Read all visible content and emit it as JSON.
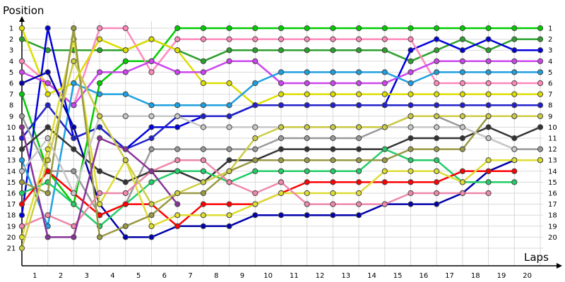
{
  "chart_data": {
    "type": "line",
    "ylabel": "Position",
    "xlabel": "Laps",
    "x_ticks": [
      "1",
      "2",
      "3",
      "4",
      "5",
      "6",
      "7",
      "8",
      "9",
      "10",
      "11",
      "12",
      "13",
      "14",
      "15",
      "16",
      "17",
      "18",
      "19",
      "20"
    ],
    "y_ticks": [
      "1",
      "2",
      "3",
      "4",
      "5",
      "6",
      "7",
      "8",
      "9",
      "10",
      "11",
      "12",
      "13",
      "14",
      "15",
      "16",
      "17",
      "18",
      "19",
      "20",
      "21"
    ],
    "right_ticks": [
      "1",
      "2",
      "3",
      "4",
      "5",
      "6",
      "7",
      "8",
      "9",
      "10",
      "11",
      "12",
      "13",
      "14",
      "15",
      "16",
      "17",
      "18",
      "19",
      "20"
    ],
    "xlim": [
      0,
      20.5
    ],
    "ylim": [
      1,
      21
    ],
    "y_inverted": true,
    "grid": true,
    "series": [
      {
        "color": "#00cc00",
        "x": [
          0,
          1,
          2,
          3,
          4,
          5,
          6,
          7,
          8,
          9,
          10,
          11,
          12,
          13,
          14,
          15,
          16,
          17,
          18,
          19,
          20
        ],
        "y": [
          7,
          14,
          17,
          6,
          4,
          4,
          1,
          1,
          1,
          1,
          1,
          1,
          1,
          1,
          1,
          1,
          1,
          1,
          1,
          1,
          1
        ]
      },
      {
        "color": "#2ca02c",
        "x": [
          0,
          1,
          2,
          3,
          4,
          5,
          6,
          7,
          8,
          9,
          10,
          11,
          12,
          13,
          14,
          15,
          16,
          17,
          18,
          19,
          20
        ],
        "y": [
          2,
          3,
          3,
          3,
          3,
          2,
          3,
          4,
          3,
          3,
          3,
          3,
          3,
          3,
          3,
          4,
          3,
          2,
          3,
          2,
          2
        ]
      },
      {
        "color": "#0000dd",
        "x": [
          0,
          1,
          2,
          3,
          4,
          5,
          6,
          7,
          8,
          9,
          10,
          11,
          12,
          13,
          14,
          15,
          16,
          17,
          18,
          19,
          20
        ],
        "y": [
          18,
          1,
          11,
          10,
          12,
          10,
          10,
          9,
          9,
          8,
          8,
          8,
          8,
          8,
          8,
          3,
          2,
          3,
          2,
          3,
          3
        ]
      },
      {
        "color": "#ff88bb",
        "x": [
          0,
          1,
          2,
          3,
          4,
          5,
          6,
          7,
          8,
          9,
          10,
          11,
          12,
          13,
          14,
          15,
          16,
          17,
          18,
          19,
          20
        ],
        "y": [
          4,
          6,
          8,
          1,
          1,
          5,
          2,
          2,
          2,
          2,
          2,
          2,
          2,
          2,
          2,
          2,
          6,
          6,
          6,
          6,
          6
        ]
      },
      {
        "color": "#dddd00",
        "x": [
          0,
          1,
          2,
          3,
          4,
          5,
          6,
          7,
          8,
          9,
          10,
          11,
          12,
          13,
          14,
          15,
          16,
          17,
          18,
          19,
          20
        ],
        "y": [
          1,
          7,
          6,
          2,
          3,
          2,
          3,
          6,
          6,
          8,
          7,
          7,
          7,
          7,
          7,
          7,
          7,
          7,
          7,
          7,
          7
        ]
      },
      {
        "color": "#cc44ee",
        "x": [
          0,
          1,
          2,
          3,
          4,
          5,
          6,
          7,
          8,
          9,
          10,
          11,
          12,
          13,
          14,
          15,
          16,
          17,
          18,
          19,
          20
        ],
        "y": [
          5,
          6,
          8,
          5,
          5,
          4,
          5,
          5,
          4,
          4,
          6,
          6,
          6,
          6,
          6,
          5,
          4,
          4,
          4,
          4,
          4
        ]
      },
      {
        "color": "#1ea0e0",
        "x": [
          0,
          1,
          2,
          3,
          4,
          5,
          6,
          7,
          8,
          9,
          10,
          11,
          12,
          13,
          14,
          15,
          16,
          17,
          18,
          19,
          20
        ],
        "y": [
          13,
          19,
          6,
          7,
          7,
          8,
          8,
          8,
          8,
          6,
          5,
          5,
          5,
          5,
          5,
          6,
          5,
          5,
          5,
          5,
          5
        ]
      },
      {
        "color": "#0000aa",
        "x": [
          0,
          1,
          2,
          3,
          4,
          5,
          6,
          7,
          8,
          9,
          10,
          11,
          12,
          13,
          14,
          15,
          16,
          17,
          18,
          19,
          20
        ],
        "y": [
          6,
          5,
          10,
          17,
          20,
          20,
          19,
          19,
          19,
          18,
          18,
          18,
          18,
          18,
          17,
          17,
          17,
          16,
          14,
          13,
          13
        ]
      },
      {
        "color": "#2020cc",
        "x": [
          0,
          1,
          2,
          3,
          4,
          5,
          6,
          7,
          8,
          9,
          10,
          11,
          12,
          13,
          14,
          15,
          16,
          17,
          18,
          19,
          20
        ],
        "y": [
          11,
          8,
          11,
          10,
          12,
          11,
          9,
          9,
          9,
          8,
          8,
          8,
          8,
          8,
          8,
          8,
          8,
          8,
          8,
          8,
          8
        ]
      },
      {
        "color": "#999999",
        "x": [
          0,
          1,
          2,
          3,
          4,
          5,
          6,
          7,
          8,
          9,
          10,
          11,
          12,
          13,
          14,
          15,
          16,
          17,
          18,
          19,
          20
        ],
        "y": [
          9,
          14,
          14,
          18,
          17,
          12,
          12,
          12,
          12,
          12,
          11,
          11,
          11,
          11,
          10,
          9,
          9,
          10,
          11,
          12,
          12
        ]
      },
      {
        "color": "#333333",
        "x": [
          0,
          1,
          2,
          3,
          4,
          5,
          6,
          7,
          8,
          9,
          10,
          11,
          12,
          13,
          14,
          15,
          16,
          17,
          18,
          19,
          20
        ],
        "y": [
          12,
          10,
          12,
          14,
          15,
          14,
          14,
          15,
          13,
          13,
          12,
          12,
          12,
          12,
          12,
          11,
          11,
          11,
          10,
          11,
          10
        ]
      },
      {
        "color": "#22cc66",
        "x": [
          0,
          1,
          2,
          3,
          4,
          5,
          6,
          7,
          8,
          9,
          10,
          11,
          12,
          13,
          14,
          15,
          16,
          17,
          18,
          19
        ],
        "y": [
          16,
          15,
          17,
          19,
          17,
          15,
          14,
          14,
          15,
          14,
          14,
          14,
          14,
          14,
          12,
          13,
          13,
          15,
          15,
          15
        ]
      },
      {
        "color": "#ff0000",
        "x": [
          0,
          1,
          2,
          3,
          4,
          5,
          6,
          7,
          8,
          9,
          10,
          11,
          12,
          13,
          14,
          15,
          16,
          17,
          18,
          19
        ],
        "y": [
          17,
          14,
          16,
          18,
          17,
          17,
          19,
          17,
          17,
          17,
          16,
          15,
          15,
          15,
          15,
          15,
          15,
          14,
          14,
          14
        ]
      },
      {
        "color": "#dddd33",
        "x": [
          0,
          1,
          2,
          3,
          4,
          5,
          6,
          7,
          8,
          9,
          10,
          11,
          12,
          13,
          14,
          15,
          16,
          17,
          18,
          19,
          20
        ],
        "y": [
          20,
          12,
          2,
          17,
          13,
          19,
          18,
          18,
          18,
          17,
          16,
          16,
          16,
          16,
          14,
          14,
          14,
          15,
          13,
          13,
          13
        ]
      },
      {
        "color": "#999944",
        "x": [
          0,
          1,
          2,
          3,
          4,
          5,
          6,
          7,
          8,
          9,
          10,
          11,
          12,
          13,
          14,
          15,
          16,
          17,
          18,
          19
        ],
        "y": [
          15,
          16,
          1,
          20,
          19,
          18,
          16,
          16,
          14,
          13,
          13,
          13,
          13,
          13,
          13,
          12,
          12,
          12,
          9,
          9
        ]
      },
      {
        "color": "#ee88aa",
        "x": [
          0,
          1,
          2,
          3,
          4,
          5,
          6,
          7,
          8,
          9,
          10,
          11,
          12,
          13,
          14,
          15,
          16,
          17,
          18
        ],
        "y": [
          19,
          18,
          19,
          16,
          16,
          14,
          13,
          13,
          15,
          16,
          15,
          17,
          17,
          17,
          17,
          16,
          16,
          16,
          16
        ]
      },
      {
        "color": "#883399",
        "x": [
          0,
          1,
          2,
          3,
          4,
          5,
          6
        ],
        "y": [
          10,
          20,
          20,
          11,
          12,
          14,
          17
        ]
      },
      {
        "color": "#c8c8c8",
        "x": [
          0,
          1,
          2,
          3,
          4,
          5,
          6,
          7,
          8,
          9,
          10,
          11,
          12,
          13,
          14,
          15,
          16,
          17,
          18,
          19
        ],
        "y": [
          14,
          11,
          16,
          9,
          9,
          9,
          9,
          10,
          10,
          10,
          10,
          10,
          10,
          10,
          10,
          10,
          10,
          10,
          11,
          12
        ]
      },
      {
        "color": "#cccc44",
        "x": [
          0,
          1,
          2,
          3,
          4,
          5,
          6,
          7,
          8,
          9,
          10,
          11,
          12,
          13,
          14,
          15,
          16,
          17,
          18,
          19,
          20
        ],
        "y": [
          21,
          13,
          4,
          9,
          13,
          17,
          16,
          15,
          14,
          11,
          10,
          10,
          10,
          10,
          10,
          9,
          9,
          9,
          9,
          9,
          9
        ]
      }
    ]
  }
}
